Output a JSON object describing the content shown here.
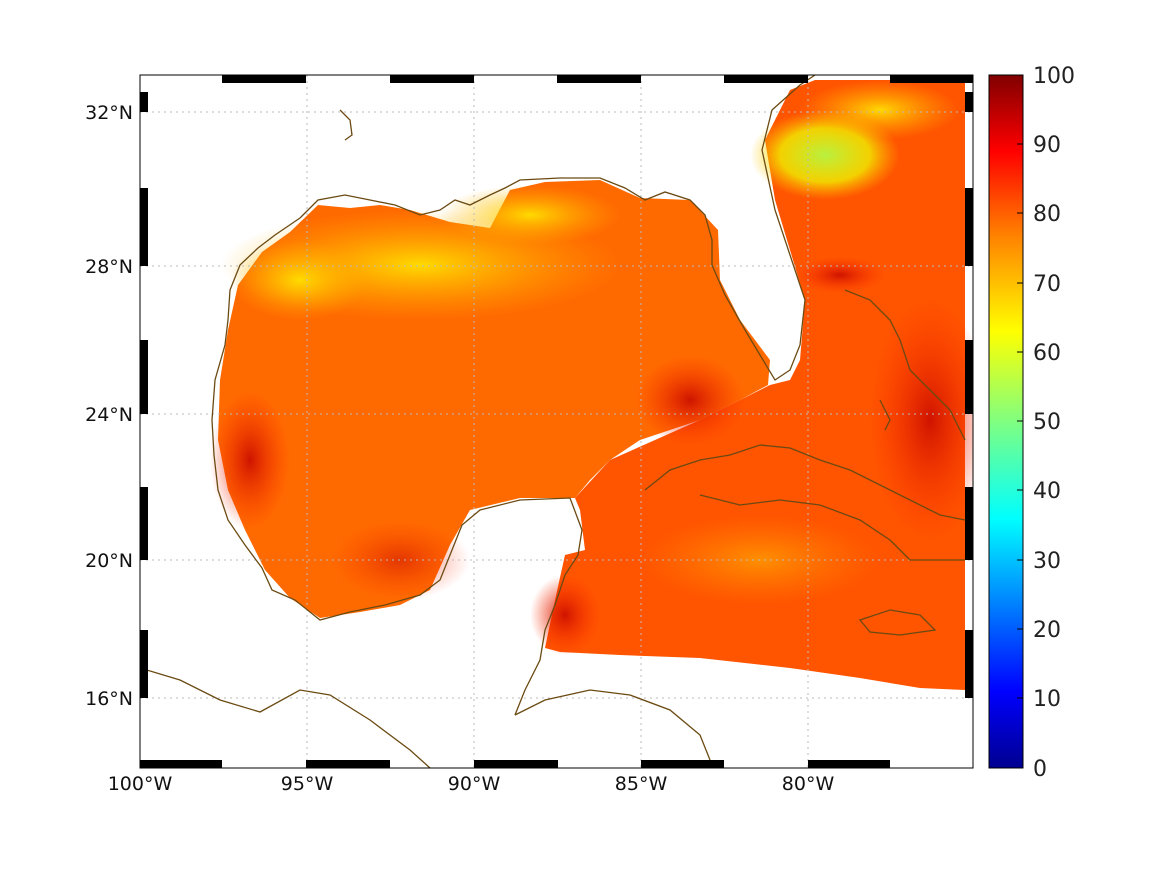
{
  "map": {
    "title": "",
    "lon_range": [
      -100,
      -75
    ],
    "lat_range": [
      14.2,
      32.9
    ],
    "lon_ticks": [
      {
        "value": -100,
        "label": "100°W"
      },
      {
        "value": -95,
        "label": "95°W"
      },
      {
        "value": -90,
        "label": "90°W"
      },
      {
        "value": -85,
        "label": "85°W"
      },
      {
        "value": -80,
        "label": "80°W"
      }
    ],
    "lat_ticks": [
      {
        "value": 32,
        "label": "32°N"
      },
      {
        "value": 28,
        "label": "28°N"
      },
      {
        "value": 24,
        "label": "24°N"
      },
      {
        "value": 20,
        "label": "20°N"
      },
      {
        "value": 16,
        "label": "16°N"
      }
    ],
    "coastline_color": "#6b4a12",
    "gridlines": true,
    "frame_style": "alternating black-white border"
  },
  "colorbar": {
    "min": 0,
    "max": 100,
    "labels": [
      "100",
      "90",
      "80",
      "70",
      "60",
      "50",
      "40",
      "30",
      "20",
      "10",
      "0"
    ],
    "colormap": "jet",
    "colors": [
      "#00008f",
      "#0000ff",
      "#0080ff",
      "#00ffff",
      "#80ff80",
      "#ffff00",
      "#ff8000",
      "#ff0000",
      "#800000"
    ]
  },
  "chart_data": {
    "type": "heatmap",
    "title": "",
    "xlabel": "",
    "ylabel": "",
    "x_range": [
      -100,
      -75
    ],
    "y_range": [
      14.2,
      32.9
    ],
    "color_range": [
      0,
      100
    ],
    "field_description_values": {
      "typical_gulf_value": 78,
      "northern_gulf_shelf": 68,
      "atlantic_low_near_30N_80W": 55,
      "high_near_25N_83W": 92
    }
  }
}
